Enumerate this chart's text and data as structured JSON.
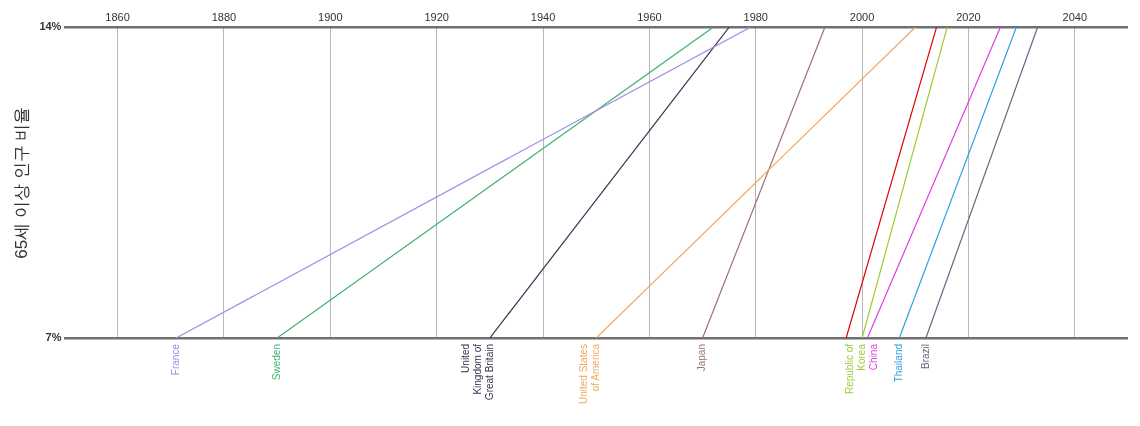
{
  "chart_data": {
    "type": "line",
    "ylabel": "65세 이상 인구 비율",
    "xlim": [
      1850,
      2050
    ],
    "xticks": [
      1860,
      1880,
      1900,
      1920,
      1940,
      1960,
      1980,
      2000,
      2020,
      2040
    ],
    "ylim": [
      7,
      14
    ],
    "yticks": [
      {
        "value": 7,
        "label": "7%"
      },
      {
        "value": 14,
        "label": "14%"
      }
    ],
    "grid": true,
    "legend": false,
    "marker": "none",
    "line_style": "solid",
    "series": [
      {
        "name": "France",
        "color": "#a08ce8",
        "x": [
          1871,
          1979
        ],
        "values": [
          7,
          14
        ]
      },
      {
        "name": "Sweden",
        "color": "#3cb371",
        "x": [
          1890,
          1972
        ],
        "values": [
          7,
          14
        ]
      },
      {
        "name": "United Kingdom of Great Britain",
        "color": "#3a3050",
        "x": [
          1930,
          1975
        ],
        "values": [
          7,
          14
        ]
      },
      {
        "name": "United States of America",
        "color": "#f0a860",
        "x": [
          1950,
          2010
        ],
        "values": [
          7,
          14
        ]
      },
      {
        "name": "Japan",
        "color": "#a07070",
        "x": [
          1970,
          1993
        ],
        "values": [
          7,
          14
        ]
      },
      {
        "name": "Republic of Korea",
        "color": "#9acd32",
        "x": [
          2000,
          2016
        ],
        "values": [
          7,
          14
        ]
      },
      {
        "color": "#e00000",
        "x": [
          1997,
          2014
        ],
        "values": [
          7,
          14
        ]
      },
      {
        "name": "China",
        "color": "#e040e0",
        "x": [
          2001,
          2026
        ],
        "values": [
          7,
          14
        ]
      },
      {
        "name": "Thailand",
        "color": "#30a0e0",
        "x": [
          2007,
          2029
        ],
        "values": [
          7,
          14
        ]
      },
      {
        "name": "Brazil",
        "color": "#706080",
        "x": [
          2012,
          2033
        ],
        "values": [
          7,
          14
        ]
      }
    ]
  }
}
